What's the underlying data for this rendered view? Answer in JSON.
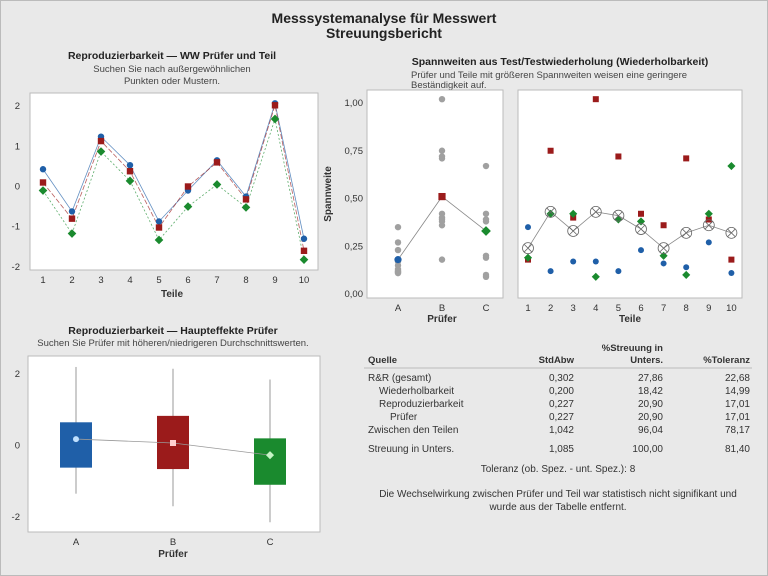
{
  "header": {
    "title": "Messsystemanalyse für Messwert",
    "subtitle": "Streuungsbericht"
  },
  "colors": {
    "A": "#1f5fa8",
    "B": "#9b1b1b",
    "C": "#1a8a2e",
    "gray": "#a0a0a0",
    "background": "#e9e9e9"
  },
  "chart_data": [
    {
      "type": "line",
      "title": "Reproduzierbarkeit — WW Prüfer und Teil",
      "subtitle_lines": [
        "Suchen Sie nach außergewöhnlichen",
        "Punkten oder Mustern."
      ],
      "xlabel": "Teile",
      "categories": [
        "1",
        "2",
        "3",
        "4",
        "5",
        "6",
        "7",
        "8",
        "9",
        "10"
      ],
      "ylim": [
        -2.1,
        2.2
      ],
      "yticks": [
        "2",
        "1",
        "0",
        "-1",
        "-2"
      ],
      "series": [
        {
          "key": "A",
          "marker": "circle",
          "values": [
            0.43,
            -0.62,
            1.24,
            0.53,
            -0.87,
            -0.1,
            0.65,
            -0.25,
            2.07,
            -1.3
          ]
        },
        {
          "key": "B",
          "marker": "square",
          "values": [
            0.1,
            -0.8,
            1.13,
            0.38,
            -1.02,
            0.0,
            0.6,
            -0.32,
            2.02,
            -1.6
          ]
        },
        {
          "key": "C",
          "marker": "diamond",
          "values": [
            -0.1,
            -1.17,
            0.87,
            0.14,
            -1.33,
            -0.5,
            0.05,
            -0.52,
            1.68,
            -1.82
          ]
        }
      ]
    },
    {
      "type": "scatter",
      "title": "Spannweiten aus Test/Testwiederholung (Wiederholbarkeit)",
      "subtitle_lines": [
        "Prüfer und Teile mit größeren Spannweiten weisen eine geringere",
        "Beständigkeit auf."
      ],
      "ylabel": "Spannweite",
      "yticks": [
        "1,00",
        "0,75",
        "0,50",
        "0,25",
        "0,00"
      ],
      "ylim": [
        0,
        1.06
      ],
      "left_panel": {
        "xlabel": "Prüfer",
        "categories": [
          "A",
          "B",
          "C"
        ],
        "points": [
          [
            0.35,
            0.27,
            0.23,
            0.17,
            0.15,
            0.13,
            0.12,
            0.12,
            0.11,
            0.11
          ],
          [
            1.02,
            0.75,
            0.72,
            0.71,
            0.42,
            0.4,
            0.39,
            0.38,
            0.36,
            0.18
          ],
          [
            0.67,
            0.42,
            0.39,
            0.38,
            0.2,
            0.19,
            0.1,
            0.09
          ]
        ],
        "means": [
          0.18,
          0.51,
          0.33
        ]
      },
      "right_panel": {
        "xlabel": "Teile",
        "categories": [
          "1",
          "2",
          "3",
          "4",
          "5",
          "6",
          "7",
          "8",
          "9",
          "10"
        ],
        "series": [
          {
            "key": "A",
            "marker": "circle",
            "values": [
              0.35,
              0.12,
              0.17,
              0.17,
              0.12,
              0.23,
              0.16,
              0.14,
              0.27,
              0.11
            ]
          },
          {
            "key": "B",
            "marker": "square",
            "values": [
              0.18,
              0.75,
              0.4,
              1.02,
              0.72,
              0.42,
              0.36,
              0.71,
              0.39,
              0.18
            ]
          },
          {
            "key": "C",
            "marker": "diamond",
            "values": [
              0.19,
              0.42,
              0.42,
              0.09,
              0.39,
              0.38,
              0.2,
              0.1,
              0.42,
              0.67
            ]
          }
        ],
        "means": [
          0.24,
          0.43,
          0.33,
          0.43,
          0.41,
          0.34,
          0.24,
          0.32,
          0.36,
          0.32
        ]
      }
    },
    {
      "type": "box",
      "title": "Reproduzierbarkeit — Haupteffekte Prüfer",
      "subtitle": "Suchen Sie Prüfer mit höheren/niedrigeren Durchschnittswerten.",
      "xlabel": "Prüfer",
      "categories": [
        "A",
        "B",
        "C"
      ],
      "ylim": [
        -2.4,
        2.6
      ],
      "yticks": [
        "2",
        "0",
        "-2"
      ],
      "boxes": [
        {
          "key": "A",
          "marker": "circle",
          "whisker_high": 2.2,
          "q3": 0.65,
          "q1": -0.62,
          "whisker_low": -1.35,
          "mean": 0.18
        },
        {
          "key": "B",
          "marker": "square",
          "whisker_high": 2.15,
          "q3": 0.83,
          "q1": -0.66,
          "whisker_low": -1.7,
          "mean": 0.07
        },
        {
          "key": "C",
          "marker": "diamond",
          "whisker_high": 1.85,
          "q3": 0.2,
          "q1": -1.1,
          "whisker_low": -2.15,
          "mean": -0.27
        }
      ]
    }
  ],
  "table": {
    "headers": {
      "source": "Quelle",
      "stdev": "StdAbw",
      "pct_var_1": "%Streuung in",
      "pct_var_2": "Unters.",
      "pct_tol": "%Toleranz"
    },
    "rows": [
      {
        "source": "R&R (gesamt)",
        "indent": 0,
        "stdev": "0,302",
        "pct_var": "27,86",
        "pct_tol": "22,68"
      },
      {
        "source": "Wiederholbarkeit",
        "indent": 1,
        "stdev": "0,200",
        "pct_var": "18,42",
        "pct_tol": "14,99"
      },
      {
        "source": "Reproduzierbarkeit",
        "indent": 1,
        "stdev": "0,227",
        "pct_var": "20,90",
        "pct_tol": "17,01"
      },
      {
        "source": "Prüfer",
        "indent": 2,
        "stdev": "0,227",
        "pct_var": "20,90",
        "pct_tol": "17,01"
      },
      {
        "source": "Zwischen den Teilen",
        "indent": 0,
        "stdev": "1,042",
        "pct_var": "96,04",
        "pct_tol": "78,17"
      },
      {
        "source": "Streuung in Unters.",
        "indent": 0,
        "stdev": "1,085",
        "pct_var": "100,00",
        "pct_tol": "81,40"
      }
    ],
    "tolerance_note": "Toleranz (ob. Spez. - unt. Spez.): 8",
    "footnote_lines": [
      "Die Wechselwirkung zwischen Prüfer und Teil war statistisch nicht signifikant und",
      "wurde aus der Tabelle entfernt."
    ]
  }
}
